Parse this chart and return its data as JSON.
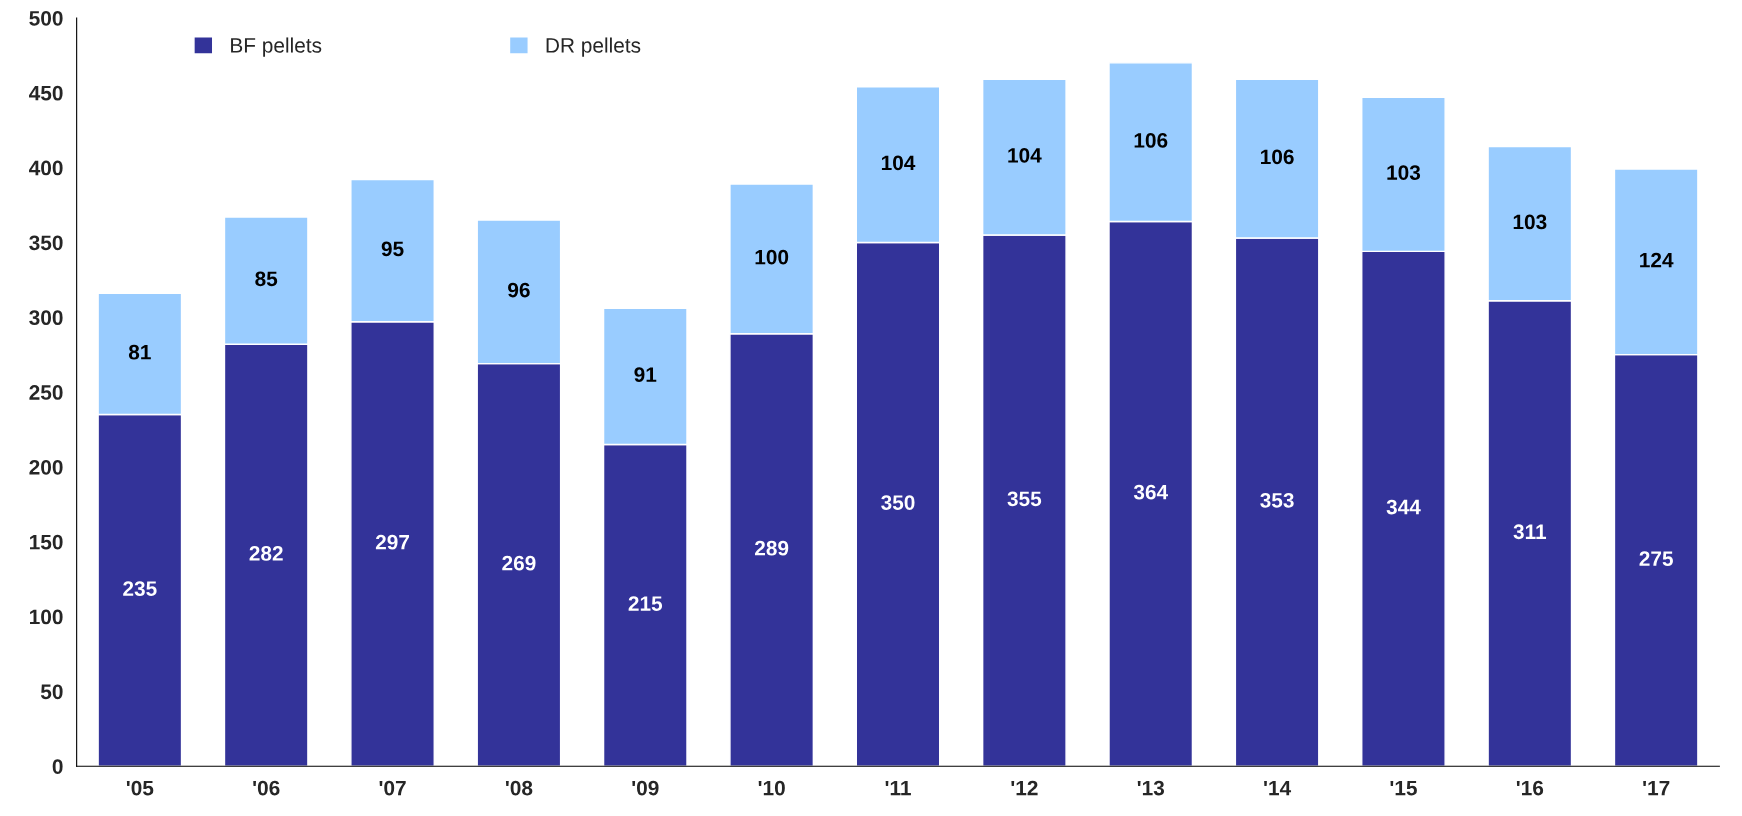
{
  "chart_data": {
    "type": "bar",
    "stacked": true,
    "categories": [
      "'05",
      "'06",
      "'07",
      "'08",
      "'09",
      "'10",
      "'11",
      "'12",
      "'13",
      "'14",
      "'15",
      "'16",
      "'17"
    ],
    "series": [
      {
        "name": "BF pellets",
        "color": "#333399",
        "values": [
          235,
          282,
          297,
          269,
          215,
          289,
          350,
          355,
          364,
          353,
          344,
          311,
          275
        ]
      },
      {
        "name": "DR pellets",
        "color": "#99ccff",
        "values": [
          81,
          85,
          95,
          96,
          91,
          100,
          104,
          104,
          106,
          106,
          103,
          103,
          124
        ]
      }
    ],
    "ylim": [
      0,
      500
    ],
    "yticks": [
      0,
      50,
      100,
      150,
      200,
      250,
      300,
      350,
      400,
      450,
      500
    ],
    "data_labels": true,
    "legend": "top left",
    "grid": false
  }
}
